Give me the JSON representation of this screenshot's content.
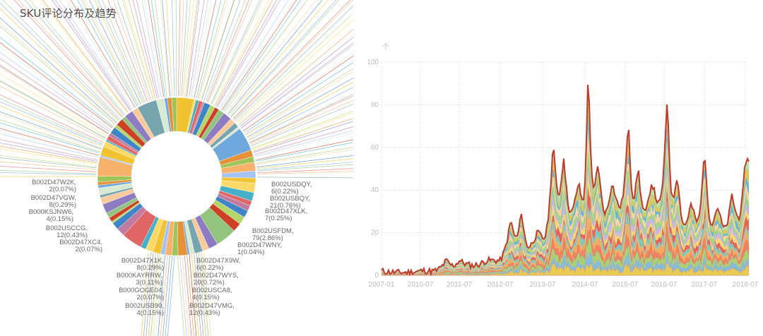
{
  "page": {
    "title": "SKU评论分布及趋势"
  },
  "chart_data": [
    {
      "type": "pie",
      "title": "SKU评论分布及趋势",
      "donut": true,
      "labels_left": [
        {
          "sku": "B002D47W2K,",
          "value": "2(0.07%)"
        },
        {
          "sku": "B002D47VGW,",
          "value": "8(0.29%)"
        },
        {
          "sku": "B000KSJNW6,",
          "value": "4(0.15%)"
        },
        {
          "sku": "B002USCCG,",
          "value": "12(0.43%)"
        },
        {
          "sku": "B002D47XC4,",
          "value": "2(0.07%)"
        },
        {
          "sku": "B002D47X1K,",
          "value": "8(0.29%)"
        },
        {
          "sku": "B000KAYRRW,",
          "value": "3(0.11%)"
        },
        {
          "sku": "B000GOGE04,",
          "value": "2(0.07%)"
        },
        {
          "sku": "B002USB90,",
          "value": "4(0.15%)"
        }
      ],
      "labels_right": [
        {
          "sku": "B002USDQY,",
          "value": "6(0.22%)"
        },
        {
          "sku": "B002USBQY,",
          "value": "21(0.76%)"
        },
        {
          "sku": "B002D47XLK,",
          "value": "7(0.25%)"
        },
        {
          "sku": "B002USFDM,",
          "value": "79(2.86%)"
        },
        {
          "sku": "B002D47WNY,",
          "value": "1(0.04%)"
        },
        {
          "sku": "B002D47X9W,",
          "value": "6(0.22%)"
        },
        {
          "sku": "B002D47WYS,",
          "value": "20(0.72%)"
        },
        {
          "sku": "B002USCA8,",
          "value": "4(0.15%)"
        },
        {
          "sku": "B002D47VMG,",
          "value": "12(0.43%)"
        }
      ],
      "palette": [
        "#f1c232",
        "#6fa8dc",
        "#93c47d",
        "#e06666",
        "#f6b26b",
        "#76a5af",
        "#b4d56a",
        "#ffd966",
        "#e69138",
        "#8e7cc3",
        "#c27ba0",
        "#a4c2f4",
        "#d9ead3",
        "#cc4125",
        "#45b0c8",
        "#9fc55a",
        "#f9cb9c",
        "#3d85c6"
      ]
    },
    {
      "type": "area",
      "stacked": true,
      "ylabel": "个",
      "ylim": [
        0,
        100
      ],
      "yticks": [
        0,
        20,
        40,
        60,
        80,
        100
      ],
      "xticks": [
        "2007-01",
        "2010-07",
        "2011-07",
        "2012-07",
        "2013-07",
        "2014-07",
        "2015-07",
        "2016-07",
        "2017-07",
        "2018-07"
      ],
      "grid": true,
      "total_series_peaks": [
        {
          "x": "2007-01",
          "y": 2
        },
        {
          "x": "2010-07",
          "y": 2
        },
        {
          "x": "2011-03",
          "y": 7
        },
        {
          "x": "2011-07",
          "y": 7
        },
        {
          "x": "2012-03",
          "y": 7
        },
        {
          "x": "2012-10",
          "y": 26
        },
        {
          "x": "2013-01",
          "y": 30
        },
        {
          "x": "2013-05",
          "y": 18
        },
        {
          "x": "2013-10",
          "y": 64
        },
        {
          "x": "2014-01",
          "y": 56
        },
        {
          "x": "2014-05",
          "y": 42
        },
        {
          "x": "2014-08",
          "y": 100
        },
        {
          "x": "2014-11",
          "y": 52
        },
        {
          "x": "2015-03",
          "y": 43
        },
        {
          "x": "2015-08",
          "y": 73
        },
        {
          "x": "2015-11",
          "y": 51
        },
        {
          "x": "2016-03",
          "y": 43
        },
        {
          "x": "2016-08",
          "y": 86
        },
        {
          "x": "2016-11",
          "y": 47
        },
        {
          "x": "2017-03",
          "y": 33
        },
        {
          "x": "2017-07",
          "y": 61
        },
        {
          "x": "2017-11",
          "y": 32
        },
        {
          "x": "2018-03",
          "y": 38
        },
        {
          "x": "2018-07",
          "y": 54
        }
      ],
      "layer_colors": [
        "#e8c84a",
        "#7fb8d6",
        "#a6cf6b",
        "#ef7b5c",
        "#f2a65a",
        "#7ac4b4",
        "#e85a4f",
        "#f7d46b",
        "#c7b3e0",
        "#9ed67f",
        "#fbd0a6",
        "#5ab4d9",
        "#d8c84f",
        "#b6e0a5"
      ]
    }
  ]
}
